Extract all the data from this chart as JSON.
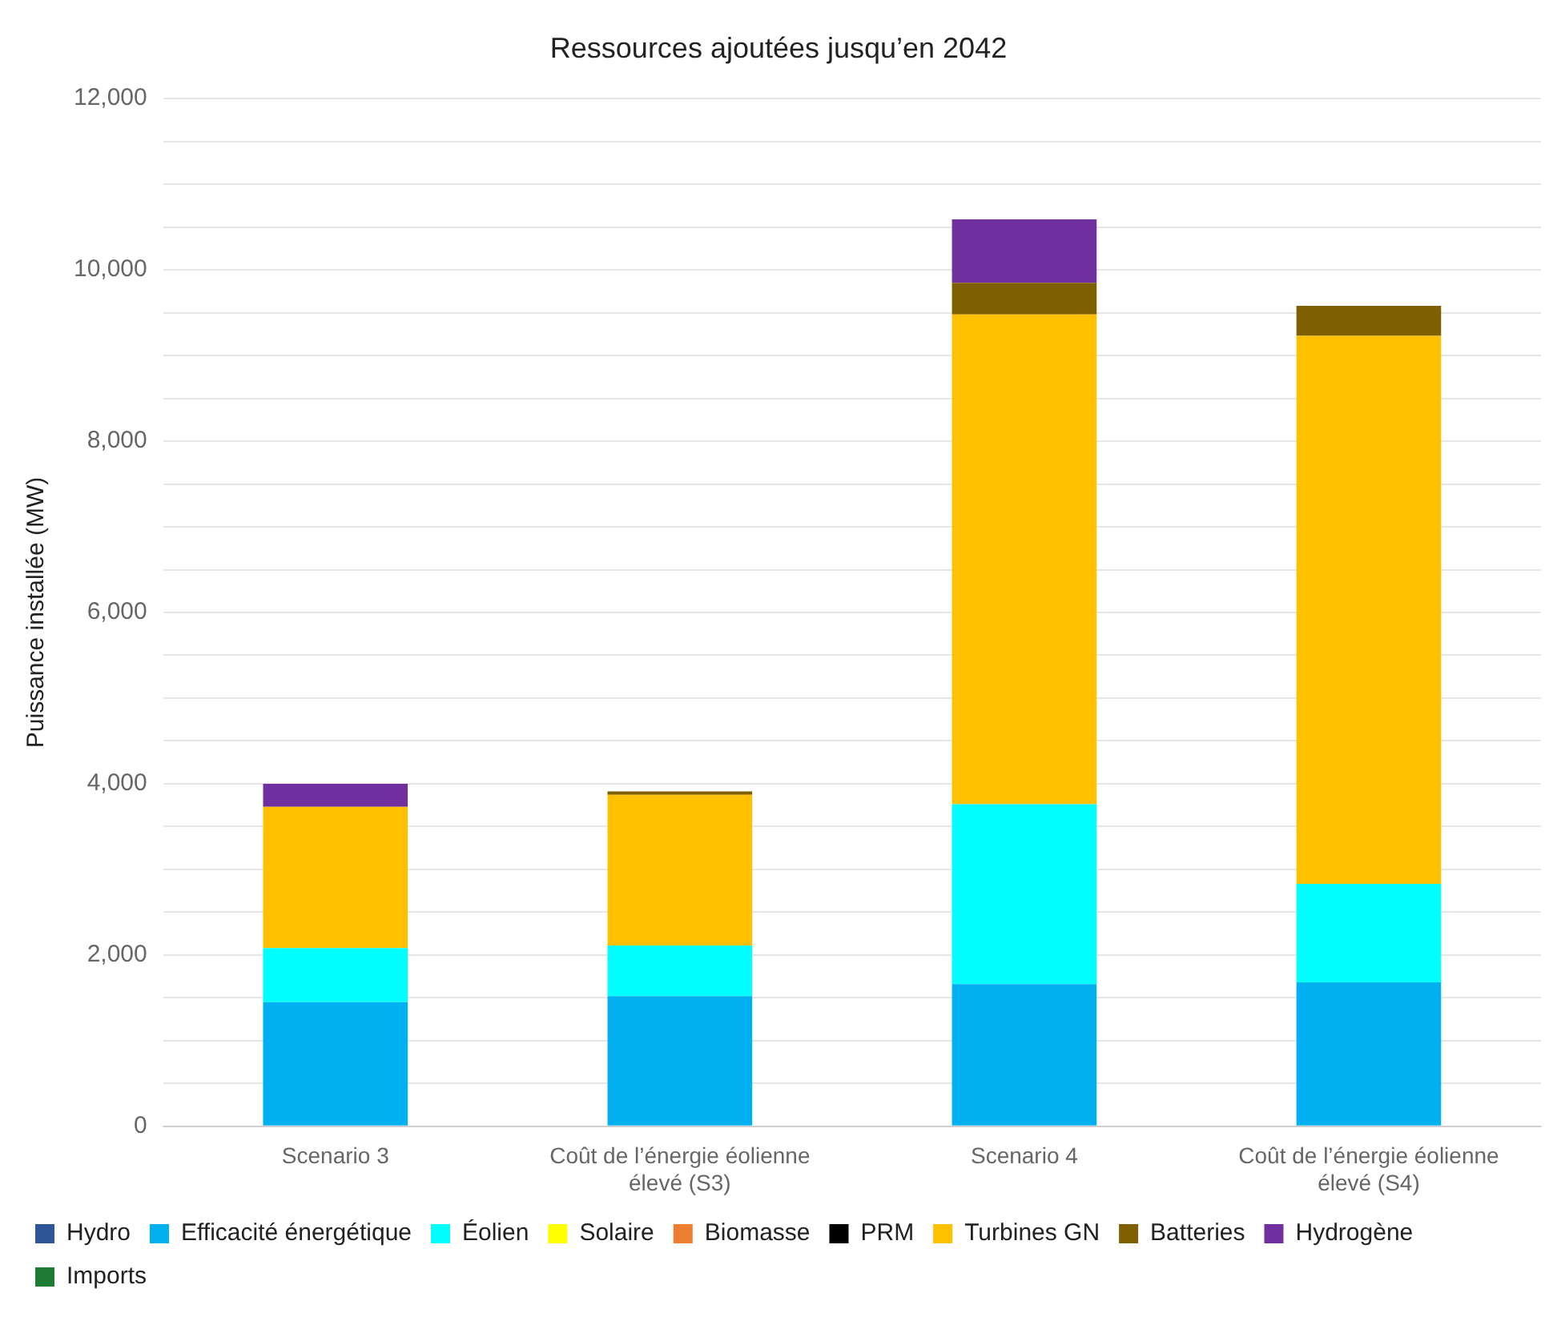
{
  "chart_data": {
    "type": "bar",
    "stacked": true,
    "title": "Ressources ajoutées jusqu’en 2042",
    "ylabel": "Puissance installée (MW)",
    "categories": [
      "Scenario 3",
      "Coût de l’énergie éolienne élevé (S3)",
      "Scenario 4",
      "Coût de l’énergie éolienne élevé (S4)"
    ],
    "series": [
      {
        "name": "Hydro",
        "color": "#2f5597",
        "values": [
          0,
          0,
          0,
          0
        ]
      },
      {
        "name": "Efficacité énergétique",
        "color": "#00b0f0",
        "values": [
          1450,
          1520,
          1660,
          1680
        ]
      },
      {
        "name": "Éolien",
        "color": "#00ffff",
        "values": [
          630,
          590,
          2100,
          1150
        ]
      },
      {
        "name": "Solaire",
        "color": "#ffff00",
        "values": [
          0,
          0,
          0,
          0
        ]
      },
      {
        "name": "Biomasse",
        "color": "#ed7d31",
        "values": [
          0,
          0,
          0,
          0
        ]
      },
      {
        "name": "PRM",
        "color": "#000000",
        "values": [
          0,
          0,
          0,
          0
        ]
      },
      {
        "name": "Turbines GN",
        "color": "#ffc000",
        "values": [
          1650,
          1760,
          5720,
          6400
        ]
      },
      {
        "name": "Batteries",
        "color": "#7f6000",
        "values": [
          0,
          40,
          370,
          350
        ]
      },
      {
        "name": "Hydrogène",
        "color": "#7030a0",
        "values": [
          270,
          0,
          740,
          0
        ]
      },
      {
        "name": "Imports",
        "color": "#1e7b34",
        "values": [
          0,
          0,
          0,
          0
        ]
      }
    ],
    "ylim": [
      0,
      12000
    ],
    "yticks": [
      0,
      {
        "value": 500,
        "label": null
      },
      {
        "value": 1000,
        "label": null
      },
      {
        "value": 1500,
        "label": null
      },
      {
        "value": 2000,
        "label": "2,000"
      },
      {
        "value": 2500,
        "label": null
      },
      {
        "value": 3000,
        "label": null
      },
      {
        "value": 3500,
        "label": null
      },
      {
        "value": 4000,
        "label": "4,000"
      },
      {
        "value": 4500,
        "label": null
      },
      {
        "value": 5000,
        "label": null
      },
      {
        "value": 5500,
        "label": null
      },
      {
        "value": 6000,
        "label": "6,000"
      },
      {
        "value": 6500,
        "label": null
      },
      {
        "value": 7000,
        "label": null
      },
      {
        "value": 7500,
        "label": null
      },
      {
        "value": 8000,
        "label": "8,000"
      },
      {
        "value": 8500,
        "label": null
      },
      {
        "value": 9000,
        "label": null
      },
      {
        "value": 9500,
        "label": null
      },
      {
        "value": 10000,
        "label": "10,000"
      },
      {
        "value": 10500,
        "label": null
      },
      {
        "value": 11000,
        "label": null
      },
      {
        "value": 11500,
        "label": null
      },
      {
        "value": 12000,
        "label": "12,000"
      }
    ],
    "grid": "y",
    "legend": "bottom"
  }
}
